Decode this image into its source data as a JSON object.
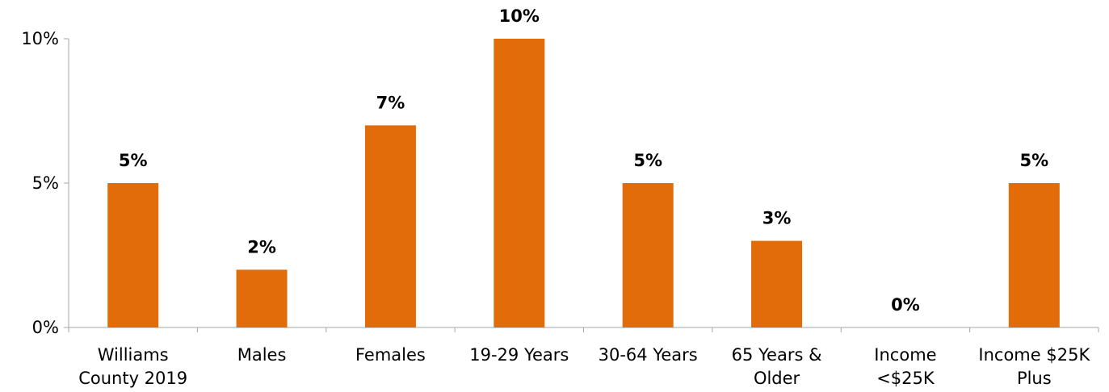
{
  "chart_data": {
    "type": "bar",
    "categories": [
      [
        "Williams",
        "County 2019"
      ],
      [
        "Males"
      ],
      [
        "Females"
      ],
      [
        "19-29 Years"
      ],
      [
        "30-64 Years"
      ],
      [
        "65 Years &",
        "Older"
      ],
      [
        "Income",
        "<$25K"
      ],
      [
        "Income $25K",
        "Plus"
      ]
    ],
    "values": [
      5,
      2,
      7,
      10,
      5,
      3,
      0,
      5
    ],
    "data_labels": [
      "5%",
      "2%",
      "7%",
      "10%",
      "5%",
      "3%",
      "0%",
      "5%"
    ],
    "yticks": [
      0,
      5,
      10
    ],
    "ytick_labels": [
      "0%",
      "5%",
      "10%"
    ],
    "ylim": [
      0,
      10
    ],
    "grid": false,
    "legend": "none",
    "bar_color": "#E36C0A",
    "axis_color": "#A6A6A6"
  }
}
